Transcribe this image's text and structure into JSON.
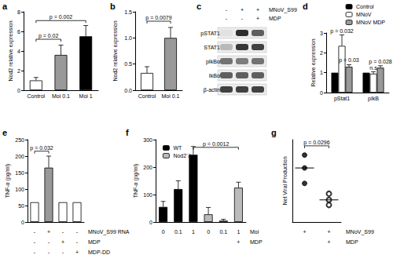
{
  "chart_data": [
    {
      "type": "bar",
      "title": "a",
      "categories": [
        "Control",
        "Moi 0.1",
        "Moi 1"
      ],
      "values": [
        1.0,
        3.6,
        5.5
      ],
      "errors": [
        0.3,
        1.0,
        1.1
      ],
      "colors": [
        "#ffffff",
        "#999999",
        "#000000"
      ],
      "y_label": "Nod2 relative expression",
      "ylim": [
        0,
        8
      ],
      "yticks": [
        0,
        2,
        4,
        6,
        8
      ],
      "annotations": [
        {
          "text": "p = 0.02",
          "from": 0,
          "to": 1,
          "y": 5.2
        },
        {
          "text": "p = 0.002",
          "from": 0,
          "to": 2,
          "y": 7.1
        }
      ]
    },
    {
      "type": "bar",
      "title": "b",
      "categories": [
        "Control",
        "Moi 0.1"
      ],
      "values": [
        0.33,
        1.0
      ],
      "errors": [
        0.12,
        0.2
      ],
      "colors": [
        "#ffffff",
        "#999999"
      ],
      "y_label": "Nod2 relative expression",
      "ylim": [
        0,
        1.5
      ],
      "yticks": [
        {
          "value": 0,
          "label": "0.0"
        },
        0.5,
        {
          "value": 1,
          "label": "1.0"
        },
        1.5
      ],
      "annotations": [
        {
          "text": "p = 0.0079",
          "from": 0,
          "to": 1,
          "y": 1.32
        }
      ]
    },
    {
      "type": "bar",
      "title": "d",
      "categories": [
        "pStat1",
        "pIkB"
      ],
      "series": [
        {
          "name": "Control",
          "color": "#000000",
          "values": [
            1,
            1
          ],
          "errors": [
            null,
            null
          ]
        },
        {
          "name": "MNoV",
          "color": "#ffffff",
          "values": [
            2.35,
            0.95
          ],
          "errors": [
            0.55,
            0.1
          ]
        },
        {
          "name": "MNoV MDP",
          "color": "#999999",
          "values": [
            1.3,
            1.25
          ],
          "errors": [
            0.1,
            0.1
          ]
        }
      ],
      "legend": "top-right",
      "y_label": "Relative expression",
      "ylim": [
        0,
        3
      ],
      "yticks": [
        0,
        1,
        2,
        3
      ],
      "annotations": [
        {
          "text": "p = 0.032",
          "at": 0,
          "series": 1,
          "y": 2.95
        },
        {
          "text": "p = 0.03",
          "at": 0,
          "series": 2,
          "y": 1.5
        },
        {
          "text": "n.s",
          "at": 1,
          "series": 1,
          "y": 1.1
        },
        {
          "text": "p = 0.028",
          "at": 1,
          "series": 2,
          "y": 1.42
        }
      ]
    },
    {
      "type": "bar",
      "title": "e",
      "categories": [
        null,
        null,
        null,
        null
      ],
      "values": [
        60,
        165,
        60,
        60
      ],
      "errors": [
        null,
        35,
        null,
        null
      ],
      "colors": [
        "#ffffff",
        "#999999",
        "#ffffff",
        "#ffffff"
      ],
      "y_label": "TNF-α (pg/ml)",
      "ylim": [
        0,
        250
      ],
      "yticks": [
        0,
        50,
        100,
        150,
        200,
        250
      ],
      "annotations": [
        {
          "text": "p = 0.032",
          "from": 0,
          "to": 1,
          "y": 215
        }
      ],
      "rows": [
        {
          "label": "MNoV_S99 RNA",
          "marks": [
            "-",
            "+",
            "-",
            "-"
          ]
        },
        {
          "label": "MDP",
          "marks": [
            "-",
            "-",
            "+",
            "-"
          ]
        },
        {
          "label": "MDP-DD",
          "marks": [
            "-",
            "-",
            "-",
            "+"
          ]
        }
      ]
    },
    {
      "type": "bar",
      "title": "f",
      "categories": [
        null,
        null,
        null,
        null,
        null,
        null
      ],
      "series": [
        {
          "name": "WT",
          "color": "#000000",
          "values": [
            55,
            120,
            245,
            null,
            null,
            null
          ],
          "errors": [
            20,
            30,
            30,
            null,
            null,
            null
          ]
        },
        {
          "name": "Nod2⁻/⁻",
          "color": "#bbbbbb",
          "values": [
            null,
            null,
            null,
            28,
            5,
            125
          ],
          "errors": [
            null,
            null,
            null,
            25,
            5,
            20
          ]
        }
      ],
      "legend": "top-left",
      "y_label": "TNF-α (pg/ml)",
      "ylim": [
        0,
        300
      ],
      "yticks": [
        0,
        100,
        200,
        300
      ],
      "annotations": [
        {
          "text": "p = 0.0012",
          "from": 2,
          "to": 5,
          "y": 272
        }
      ],
      "rows": [
        {
          "label": "Moi",
          "marks": [
            "0",
            "0.1",
            "1",
            "0",
            "0.1",
            "1"
          ]
        },
        {
          "label": "MDP",
          "marks": [
            null,
            null,
            null,
            null,
            null,
            "+"
          ]
        }
      ]
    },
    {
      "type": "scatter",
      "title": "g",
      "groups": [
        {
          "values": [
            1300,
            1050,
            750
          ],
          "median": 1050,
          "marker": "circle",
          "color": "#000000"
        },
        {
          "values": [
            550,
            430,
            330
          ],
          "median": 430,
          "marker": "emptyCircle",
          "color": "#000000"
        }
      ],
      "y_label": "Net Viral Production",
      "ylim": [
        0,
        1600
      ],
      "tick_labels": false,
      "annotations": [
        {
          "text": "p = 0.0296",
          "from": 0,
          "to": 1,
          "y": 1480
        }
      ],
      "rows": [
        {
          "label": "MNoV_S99",
          "marks": [
            "+",
            "+"
          ]
        },
        {
          "label": "MDP",
          "marks": [
            null,
            "+"
          ]
        }
      ]
    }
  ],
  "blot": {
    "title": "c",
    "treatments": [
      {
        "label": "MNoV_S99",
        "marks": [
          "-",
          "+",
          "+"
        ]
      },
      {
        "label": "MDP",
        "marks": [
          "-",
          "-",
          "+"
        ]
      }
    ],
    "bands": [
      {
        "label": "pSTAT1",
        "intensity": [
          0.05,
          0.95,
          0.7
        ]
      },
      {
        "label": "STAT1",
        "intensity": [
          0.25,
          0.9,
          0.85
        ]
      },
      {
        "label": "pIkBα",
        "intensity": [
          0.6,
          0.55,
          0.6
        ]
      },
      {
        "label": "IkBα",
        "intensity": [
          0.7,
          0.7,
          0.7
        ]
      },
      {
        "label": "β-actin",
        "intensity": [
          0.85,
          0.85,
          0.85
        ]
      }
    ]
  }
}
